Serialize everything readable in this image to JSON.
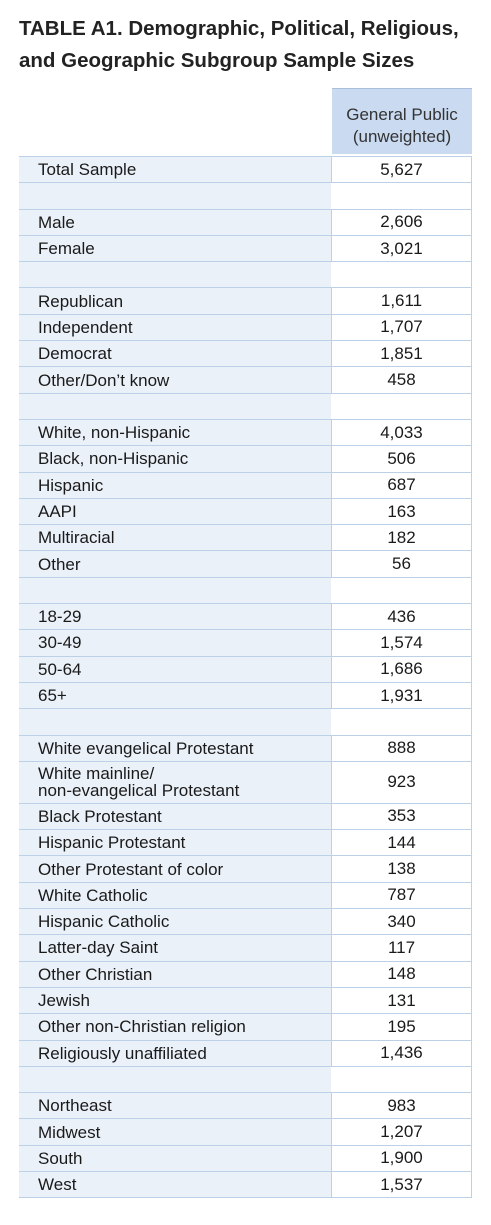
{
  "title": "TABLE A1. Demographic, Political, Religious, and Geographic Subgroup Sample Sizes",
  "column_header": {
    "line1": "General Public",
    "line2": "(unweighted)"
  },
  "rows": [
    {
      "label": "Total Sample",
      "value": "5,627"
    },
    {
      "spacer": true
    },
    {
      "label": "Male",
      "value": "2,606"
    },
    {
      "label": "Female",
      "value": "3,021"
    },
    {
      "spacer": true
    },
    {
      "label": "Republican",
      "value": "1,611"
    },
    {
      "label": "Independent",
      "value": "1,707"
    },
    {
      "label": "Democrat",
      "value": "1,851"
    },
    {
      "label": "Other/Don’t know",
      "value": "458"
    },
    {
      "spacer": true
    },
    {
      "label": "White, non-Hispanic",
      "value": "4,033"
    },
    {
      "label": "Black, non-Hispanic",
      "value": "506"
    },
    {
      "label": "Hispanic",
      "value": "687"
    },
    {
      "label": "AAPI",
      "value": "163"
    },
    {
      "label": "Multiracial",
      "value": "182"
    },
    {
      "label": "Other",
      "value": "56"
    },
    {
      "spacer": true
    },
    {
      "label": "18-29",
      "value": "436"
    },
    {
      "label": "30-49",
      "value": "1,574"
    },
    {
      "label": "50-64",
      "value": "1,686"
    },
    {
      "label": "65+",
      "value": "1,931"
    },
    {
      "spacer": true
    },
    {
      "label": "White evangelical Protestant",
      "value": "888"
    },
    {
      "label": "White mainline/",
      "label2": "non-evangelical Protestant",
      "value": "923"
    },
    {
      "label": "Black Protestant",
      "value": "353"
    },
    {
      "label": "Hispanic Protestant",
      "value": "144"
    },
    {
      "label": "Other Protestant of color",
      "value": "138"
    },
    {
      "label": "White Catholic",
      "value": "787"
    },
    {
      "label": "Hispanic Catholic",
      "value": "340"
    },
    {
      "label": "Latter-day Saint",
      "value": "117"
    },
    {
      "label": "Other Christian",
      "value": "148"
    },
    {
      "label": "Jewish",
      "value": "131"
    },
    {
      "label": "Other non-Christian religion",
      "value": "195"
    },
    {
      "label": "Religiously unaffiliated",
      "value": "1,436"
    },
    {
      "spacer": true
    },
    {
      "label": "Northeast",
      "value": "983"
    },
    {
      "label": "Midwest",
      "value": "1,207"
    },
    {
      "label": "South",
      "value": "1,900"
    },
    {
      "label": "West",
      "value": "1,537"
    }
  ],
  "colors": {
    "header_bg": "#cadaf0",
    "label_bg": "#ebf1f9",
    "border": "#bcd0e8"
  }
}
